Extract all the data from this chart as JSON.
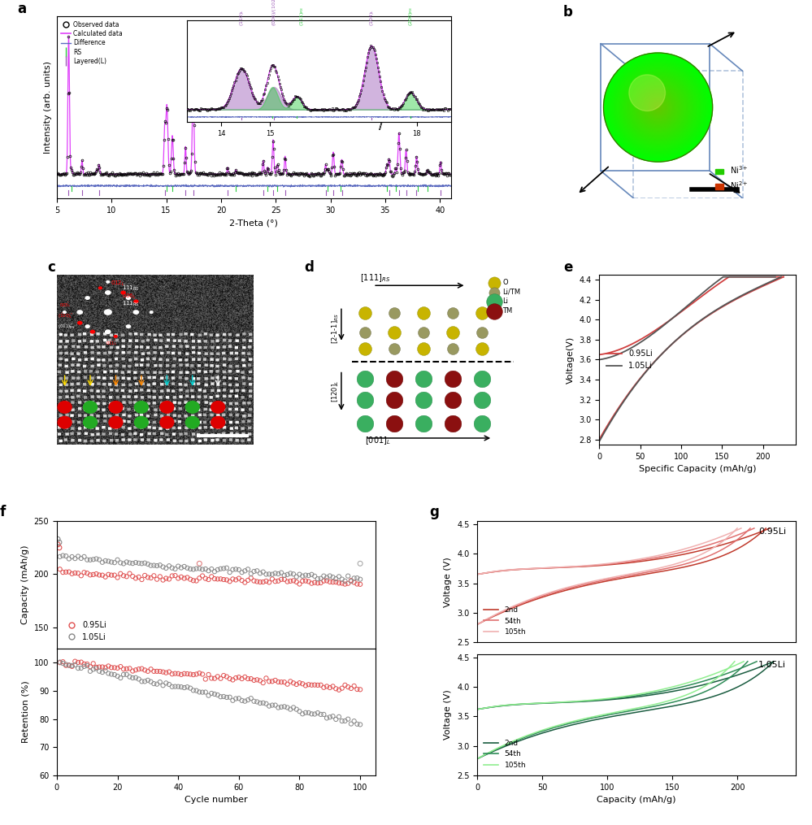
{
  "panel_label_fontsize": 12,
  "panel_a": {
    "xlabel": "2-Theta (°)",
    "ylabel": "Intensity (arb. units)",
    "xlim": [
      5,
      41
    ],
    "legend_items": [
      "Observed data",
      "Calculated data",
      "Difference",
      "RS",
      "Layered(L)"
    ],
    "legend_colors": [
      "black",
      "#e040fb",
      "#5c6bc0",
      "#2ecc40",
      "#9b59b6"
    ]
  },
  "panel_b": {
    "ni3_color": "#00cc00",
    "ni2_color": "#cc3300",
    "cube_color": "#7799cc"
  },
  "panel_e": {
    "xlabel": "Specific Capacity (mAh/g)",
    "ylabel": "Voltage(V)",
    "xlim": [
      0,
      240
    ],
    "ylim": [
      2.75,
      4.45
    ],
    "color_095": "#d04040",
    "color_105": "#555555"
  },
  "panel_f_top": {
    "ylabel": "Capacity (mAh/g)",
    "xlim": [
      0,
      105
    ],
    "ylim": [
      130,
      250
    ],
    "color_095": "#e05050",
    "color_105": "#888888"
  },
  "panel_f_bot": {
    "xlabel": "Cycle number",
    "ylabel": "Retention (%)",
    "xlim": [
      0,
      105
    ],
    "ylim": [
      60,
      105
    ],
    "color_095": "#e05050",
    "color_105": "#888888"
  },
  "panel_g_top": {
    "title": "0.95Li",
    "ylabel": "Voltage (V)",
    "xlim": [
      0,
      245
    ],
    "ylim": [
      2.5,
      4.55
    ],
    "colors": [
      "#c0392b",
      "#e07070",
      "#f0b0b0"
    ]
  },
  "panel_g_bot": {
    "title": "1.05Li",
    "xlabel": "Capacity (mAh/g)",
    "ylabel": "Voltage (V)",
    "xlim": [
      0,
      245
    ],
    "ylim": [
      2.5,
      4.55
    ],
    "colors": [
      "#1a5c40",
      "#2e8b57",
      "#90ee90"
    ]
  }
}
